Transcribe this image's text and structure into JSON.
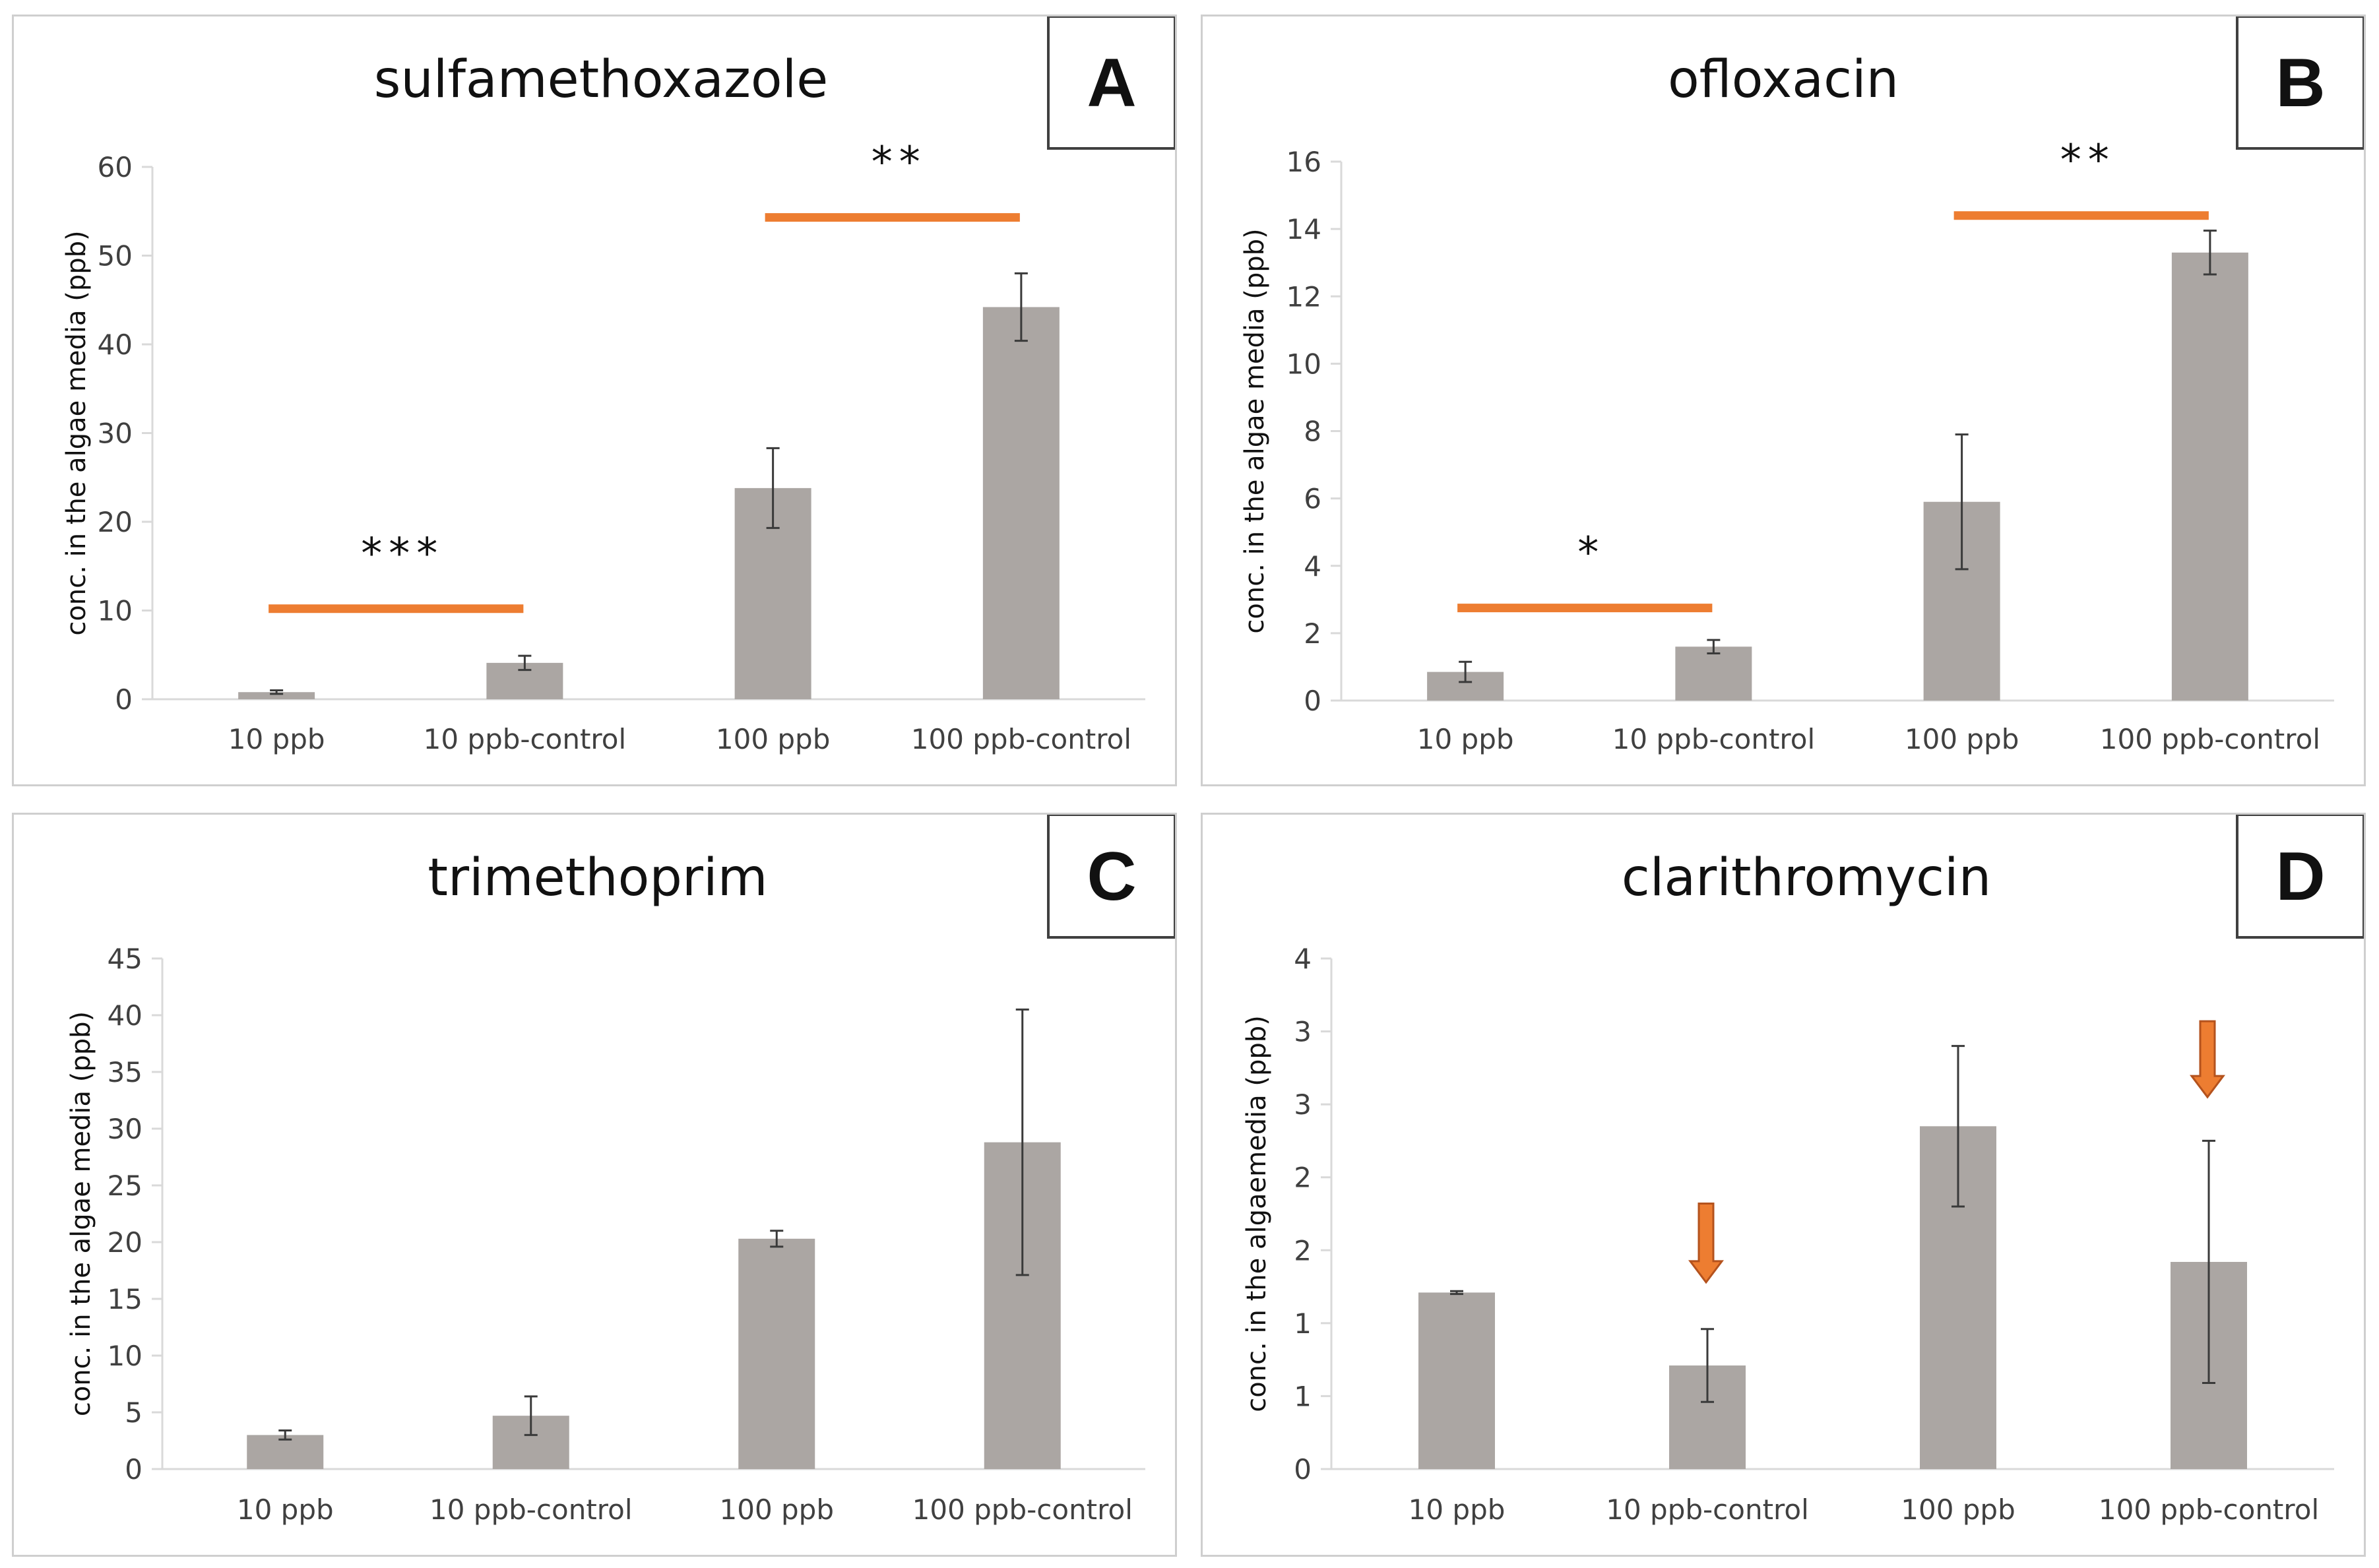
{
  "colors": {
    "bar": "#aba6a3",
    "significance": "#ed7d31",
    "axis": "#d9d9d9",
    "error": "#3a3a3a"
  },
  "chart_data": [
    {
      "type": "bar",
      "letter": "A",
      "title": "sulfamethoxazole",
      "xlabel": "",
      "ylabel": "conc. in the algae media (ppb)",
      "categories": [
        "10 ppb",
        "10 ppb-control",
        "100 ppb",
        "100 ppb-control"
      ],
      "values": [
        0.8,
        4.1,
        23.8,
        44.2
      ],
      "errors": [
        0.2,
        0.8,
        4.5,
        3.8
      ],
      "ylim": [
        0,
        60
      ],
      "yticks": [
        0,
        10,
        20,
        30,
        40,
        50,
        60
      ],
      "ytick_labels": [
        "0",
        "10",
        "20",
        "30",
        "40",
        "50",
        "60"
      ],
      "significance": [
        {
          "from": 0,
          "to": 1,
          "y": 10.2,
          "label": "***"
        },
        {
          "from": 2,
          "to": 3,
          "y": 54.3,
          "label": "**"
        }
      ],
      "arrows": []
    },
    {
      "type": "bar",
      "letter": "B",
      "title": "ofloxacin",
      "xlabel": "",
      "ylabel": "conc. in the algae media (ppb)",
      "categories": [
        "10 ppb",
        "10 ppb-control",
        "100 ppb",
        "100 ppb-control"
      ],
      "values": [
        0.85,
        1.6,
        5.9,
        13.3
      ],
      "errors": [
        0.3,
        0.2,
        2.0,
        0.65
      ],
      "ylim": [
        0,
        16
      ],
      "yticks": [
        0,
        2,
        4,
        6,
        8,
        10,
        12,
        14,
        16
      ],
      "ytick_labels": [
        "0",
        "2",
        "4",
        "6",
        "8",
        "10",
        "12",
        "14",
        "16"
      ],
      "significance": [
        {
          "from": 0,
          "to": 1,
          "y": 2.75,
          "label": "*"
        },
        {
          "from": 2,
          "to": 3,
          "y": 14.4,
          "label": "**"
        }
      ],
      "arrows": []
    },
    {
      "type": "bar",
      "letter": "C",
      "title": "trimethoprim",
      "xlabel": "",
      "ylabel": "conc. in the algae media (ppb)",
      "categories": [
        "10 ppb",
        "10 ppb-control",
        "100 ppb",
        "100 ppb-control"
      ],
      "values": [
        3.0,
        4.7,
        20.3,
        28.8
      ],
      "errors": [
        0.4,
        1.7,
        0.7,
        11.7
      ],
      "ylim": [
        0,
        45
      ],
      "yticks": [
        0,
        5,
        10,
        15,
        20,
        25,
        30,
        35,
        40,
        45
      ],
      "ytick_labels": [
        "0",
        "5",
        "10",
        "15",
        "20",
        "25",
        "30",
        "35",
        "40",
        "45"
      ],
      "significance": [],
      "arrows": []
    },
    {
      "type": "bar",
      "letter": "D",
      "title": "clarithromycin",
      "xlabel": "",
      "ylabel": "conc. in the algaemedia (ppb)",
      "categories": [
        "10 ppb",
        "10 ppb-control",
        "100 ppb",
        "100 ppb-control"
      ],
      "values": [
        1.21,
        0.71,
        2.35,
        1.42
      ],
      "errors": [
        0.01,
        0.25,
        0.55,
        0.83
      ],
      "ylim": [
        0,
        3.5
      ],
      "yticks": [
        0,
        0.5,
        1,
        1.5,
        2,
        2.5,
        3,
        3.5
      ],
      "ytick_labels": [
        "0",
        "1",
        "1",
        "2",
        "2",
        "3",
        "3",
        "4"
      ],
      "significance": [],
      "arrows": [
        {
          "category": 1,
          "y_top": 1.82,
          "y_tip": 1.28
        },
        {
          "category": 3,
          "y_top": 3.07,
          "y_tip": 2.55
        }
      ]
    }
  ]
}
